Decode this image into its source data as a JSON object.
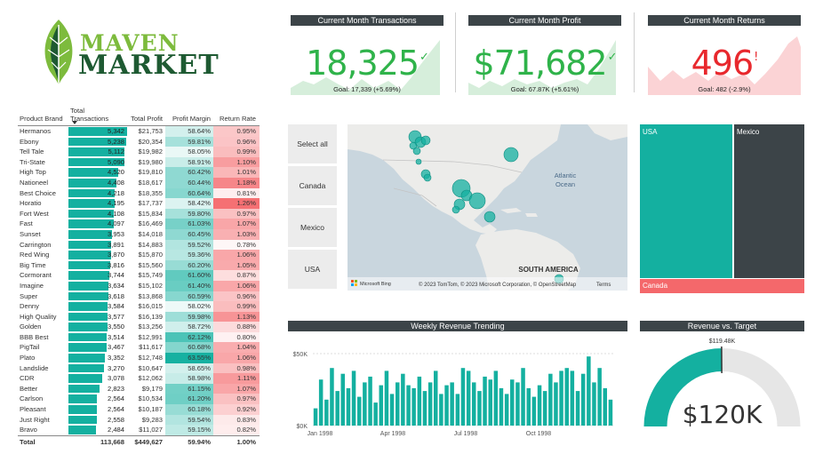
{
  "logo": {
    "line1": "MAVEN",
    "line2": "MARKET",
    "colors": {
      "leaf_light": "#7dbb3d",
      "leaf_dark": "#1e5a32"
    }
  },
  "kpis": [
    {
      "title": "Current Month Transactions",
      "value": "18,325",
      "mark": "✓",
      "goal": "Goal: 17,339 (+5.69%)",
      "color": "#2fb34a",
      "fill": "#d6eedb"
    },
    {
      "title": "Current Month Profit",
      "value": "$71,682",
      "mark": "✓",
      "goal": "Goal: 67.87K (+5.61%)",
      "color": "#2fb34a",
      "fill": "#d6eedb"
    },
    {
      "title": "Current Month Returns",
      "value": "496",
      "mark": "!",
      "goal": "Goal: 482 (-2.9%)",
      "color": "#e8282d",
      "fill": "#fbd3d5"
    }
  ],
  "table": {
    "headers": [
      "Product Brand",
      "Total Transactions",
      "Total Profit",
      "Profit Margin",
      "Return Rate"
    ],
    "max_transactions": 5342,
    "rows": [
      {
        "brand": "Hermanos",
        "tx": "5,342",
        "tx_n": 5342,
        "profit": "$21,753",
        "margin": "58.64%",
        "margin_n": 58.64,
        "ret": "0.95%",
        "ret_n": 0.95
      },
      {
        "brand": "Ebony",
        "tx": "5,238",
        "tx_n": 5238,
        "profit": "$20,354",
        "margin": "59.81%",
        "margin_n": 59.81,
        "ret": "0.96%",
        "ret_n": 0.96
      },
      {
        "brand": "Tell Tale",
        "tx": "5,112",
        "tx_n": 5112,
        "profit": "$19,982",
        "margin": "58.05%",
        "margin_n": 58.05,
        "ret": "0.99%",
        "ret_n": 0.99
      },
      {
        "brand": "Tri-State",
        "tx": "5,090",
        "tx_n": 5090,
        "profit": "$19,980",
        "margin": "58.91%",
        "margin_n": 58.91,
        "ret": "1.10%",
        "ret_n": 1.1
      },
      {
        "brand": "High Top",
        "tx": "4,520",
        "tx_n": 4520,
        "profit": "$19,810",
        "margin": "60.42%",
        "margin_n": 60.42,
        "ret": "1.01%",
        "ret_n": 1.01
      },
      {
        "brand": "Nationeel",
        "tx": "4,408",
        "tx_n": 4408,
        "profit": "$18,617",
        "margin": "60.44%",
        "margin_n": 60.44,
        "ret": "1.18%",
        "ret_n": 1.18
      },
      {
        "brand": "Best Choice",
        "tx": "4,218",
        "tx_n": 4218,
        "profit": "$18,355",
        "margin": "60.64%",
        "margin_n": 60.64,
        "ret": "0.81%",
        "ret_n": 0.81
      },
      {
        "brand": "Horatio",
        "tx": "4,195",
        "tx_n": 4195,
        "profit": "$17,737",
        "margin": "58.42%",
        "margin_n": 58.42,
        "ret": "1.26%",
        "ret_n": 1.26
      },
      {
        "brand": "Fort West",
        "tx": "4,108",
        "tx_n": 4108,
        "profit": "$15,834",
        "margin": "59.80%",
        "margin_n": 59.8,
        "ret": "0.97%",
        "ret_n": 0.97
      },
      {
        "brand": "Fast",
        "tx": "4,097",
        "tx_n": 4097,
        "profit": "$16,469",
        "margin": "61.03%",
        "margin_n": 61.03,
        "ret": "1.07%",
        "ret_n": 1.07
      },
      {
        "brand": "Sunset",
        "tx": "3,953",
        "tx_n": 3953,
        "profit": "$14,018",
        "margin": "60.45%",
        "margin_n": 60.45,
        "ret": "1.03%",
        "ret_n": 1.03
      },
      {
        "brand": "Carrington",
        "tx": "3,891",
        "tx_n": 3891,
        "profit": "$14,883",
        "margin": "59.52%",
        "margin_n": 59.52,
        "ret": "0.78%",
        "ret_n": 0.78
      },
      {
        "brand": "Red Wing",
        "tx": "3,870",
        "tx_n": 3870,
        "profit": "$15,870",
        "margin": "59.36%",
        "margin_n": 59.36,
        "ret": "1.06%",
        "ret_n": 1.06
      },
      {
        "brand": "Big Time",
        "tx": "3,816",
        "tx_n": 3816,
        "profit": "$15,560",
        "margin": "60.20%",
        "margin_n": 60.2,
        "ret": "1.05%",
        "ret_n": 1.05
      },
      {
        "brand": "Cormorant",
        "tx": "3,744",
        "tx_n": 3744,
        "profit": "$15,749",
        "margin": "61.60%",
        "margin_n": 61.6,
        "ret": "0.87%",
        "ret_n": 0.87
      },
      {
        "brand": "Imagine",
        "tx": "3,634",
        "tx_n": 3634,
        "profit": "$15,102",
        "margin": "61.40%",
        "margin_n": 61.4,
        "ret": "1.06%",
        "ret_n": 1.06
      },
      {
        "brand": "Super",
        "tx": "3,618",
        "tx_n": 3618,
        "profit": "$13,868",
        "margin": "60.59%",
        "margin_n": 60.59,
        "ret": "0.96%",
        "ret_n": 0.96
      },
      {
        "brand": "Denny",
        "tx": "3,584",
        "tx_n": 3584,
        "profit": "$16,015",
        "margin": "58.02%",
        "margin_n": 58.02,
        "ret": "0.99%",
        "ret_n": 0.99
      },
      {
        "brand": "High Quality",
        "tx": "3,577",
        "tx_n": 3577,
        "profit": "$16,139",
        "margin": "59.98%",
        "margin_n": 59.98,
        "ret": "1.13%",
        "ret_n": 1.13
      },
      {
        "brand": "Golden",
        "tx": "3,550",
        "tx_n": 3550,
        "profit": "$13,256",
        "margin": "58.72%",
        "margin_n": 58.72,
        "ret": "0.88%",
        "ret_n": 0.88
      },
      {
        "brand": "BBB Best",
        "tx": "3,514",
        "tx_n": 3514,
        "profit": "$12,991",
        "margin": "62.12%",
        "margin_n": 62.12,
        "ret": "0.80%",
        "ret_n": 0.8
      },
      {
        "brand": "PigTail",
        "tx": "3,467",
        "tx_n": 3467,
        "profit": "$11,617",
        "margin": "60.68%",
        "margin_n": 60.68,
        "ret": "1.04%",
        "ret_n": 1.04
      },
      {
        "brand": "Plato",
        "tx": "3,352",
        "tx_n": 3352,
        "profit": "$12,748",
        "margin": "63.55%",
        "margin_n": 63.55,
        "ret": "1.06%",
        "ret_n": 1.06
      },
      {
        "brand": "Landslide",
        "tx": "3,270",
        "tx_n": 3270,
        "profit": "$10,647",
        "margin": "58.65%",
        "margin_n": 58.65,
        "ret": "0.98%",
        "ret_n": 0.98
      },
      {
        "brand": "CDR",
        "tx": "3,078",
        "tx_n": 3078,
        "profit": "$12,062",
        "margin": "58.98%",
        "margin_n": 58.98,
        "ret": "1.11%",
        "ret_n": 1.11
      },
      {
        "brand": "Better",
        "tx": "2,823",
        "tx_n": 2823,
        "profit": "$9,179",
        "margin": "61.15%",
        "margin_n": 61.15,
        "ret": "1.07%",
        "ret_n": 1.07
      },
      {
        "brand": "Carlson",
        "tx": "2,564",
        "tx_n": 2564,
        "profit": "$10,534",
        "margin": "61.20%",
        "margin_n": 61.2,
        "ret": "0.97%",
        "ret_n": 0.97
      },
      {
        "brand": "Pleasant",
        "tx": "2,564",
        "tx_n": 2564,
        "profit": "$10,187",
        "margin": "60.18%",
        "margin_n": 60.18,
        "ret": "0.92%",
        "ret_n": 0.92
      },
      {
        "brand": "Just Right",
        "tx": "2,558",
        "tx_n": 2558,
        "profit": "$9,283",
        "margin": "59.54%",
        "margin_n": 59.54,
        "ret": "0.83%",
        "ret_n": 0.83
      },
      {
        "brand": "Bravo",
        "tx": "2,484",
        "tx_n": 2484,
        "profit": "$11,027",
        "margin": "59.15%",
        "margin_n": 59.15,
        "ret": "0.82%",
        "ret_n": 0.82
      }
    ],
    "total": {
      "label": "Total",
      "tx": "113,668",
      "profit": "$449,627",
      "margin": "59.94%",
      "ret": "1.00%"
    },
    "colors": {
      "bar": "#14b0a0",
      "margin": "#14b0a0",
      "ret": "#f4686b"
    }
  },
  "slicer": {
    "options": [
      "Select all",
      "Canada",
      "Mexico",
      "USA"
    ]
  },
  "map": {
    "labels": {
      "ocean": "Atlantic\nOcean",
      "ocean_line1": "Atlantic",
      "ocean_line2": "Ocean",
      "continent": "SOUTH AMERICA"
    },
    "attribution": "© 2023 TomTom, © 2023 Microsoft Corporation, © OpenStreetMap",
    "terms": "Terms",
    "provider": "Microsoft Bing",
    "bubble_color": "#14b0a0"
  },
  "treemap": {
    "cells": [
      {
        "label": "USA",
        "color": "#14b0a0"
      },
      {
        "label": "Mexico",
        "color": "#3c4448"
      },
      {
        "label": "Canada",
        "color": "#f4686b"
      }
    ]
  },
  "weekly_trend": {
    "title": "Weekly Revenue Trending",
    "y_ticks": [
      "$50K",
      "$0K"
    ],
    "x_ticks": [
      "Jan 1998",
      "Apr 1998",
      "Jul 1998",
      "Oct 1998"
    ],
    "color": "#14b0a0",
    "chart_data": {
      "type": "bar",
      "ylim": [
        0,
        50000
      ],
      "values": [
        12000,
        32000,
        18000,
        40000,
        24000,
        36000,
        26000,
        38000,
        20000,
        30000,
        34000,
        16000,
        28000,
        38000,
        22000,
        30000,
        36000,
        28000,
        26000,
        34000,
        24000,
        30000,
        38000,
        22000,
        28000,
        30000,
        22000,
        40000,
        38000,
        30000,
        24000,
        34000,
        32000,
        38000,
        26000,
        22000,
        32000,
        30000,
        40000,
        26000,
        20000,
        28000,
        24000,
        36000,
        30000,
        38000,
        40000,
        38000,
        24000,
        36000,
        48000,
        30000,
        40000,
        26000,
        18000
      ]
    }
  },
  "gauge": {
    "title": "Revenue vs. Target",
    "target": "$119.48K",
    "value": "$120K",
    "value_n": 120000,
    "target_n": 119480,
    "max_n": 240000,
    "fill_color": "#14b0a0",
    "track_color": "#e6e6e6"
  }
}
